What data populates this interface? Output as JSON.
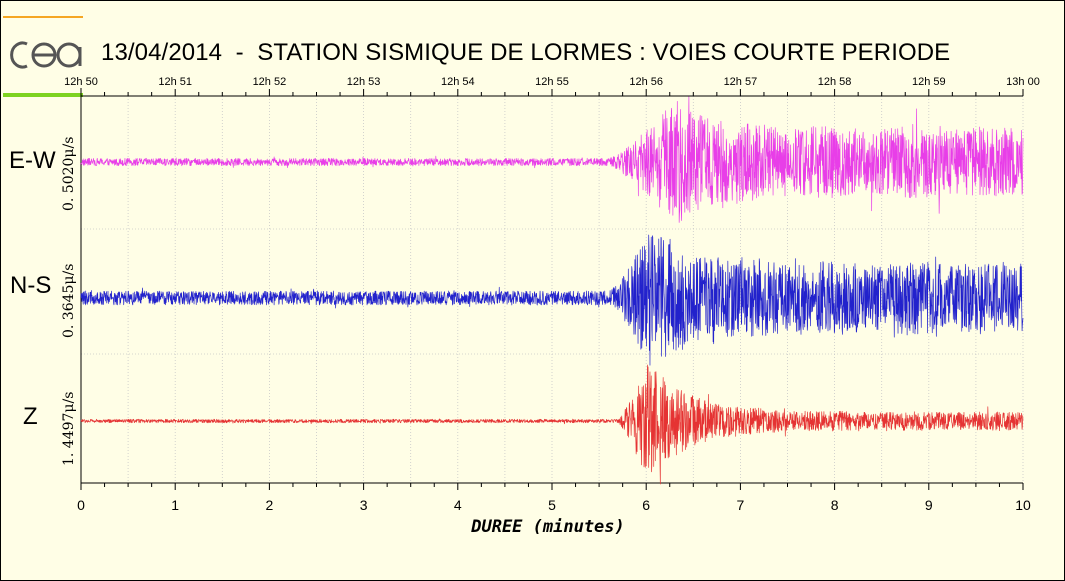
{
  "title": "13/04/2014  -  STATION SISMIQUE DE LORMES : VOIES COURTE PERIODE",
  "logo": {
    "text": "cea",
    "colors": {
      "top_bar": "#f5a623",
      "bottom_bar": "#7ed321",
      "letters": "#555555"
    }
  },
  "chart_data": {
    "type": "line",
    "title": "13/04/2014  -  STATION SISMIQUE DE LORMES : VOIES COURTE PERIODE",
    "xlabel": "DUREE (minutes)",
    "xlim": [
      0,
      10
    ],
    "x_ticks": [
      "0",
      "1",
      "2",
      "3",
      "4",
      "5",
      "6",
      "7",
      "8",
      "9",
      "10"
    ],
    "top_axis_ticks": [
      "12h 50",
      "12h 51",
      "12h 52",
      "12h 53",
      "12h 54",
      "12h 55",
      "12h 56",
      "12h 57",
      "12h 58",
      "12h 59",
      "13h 00"
    ],
    "grid": true,
    "series": [
      {
        "name": "E-W",
        "scale": "0. 5020μ/s",
        "color": "#e83ee8",
        "noise_level": 0.06,
        "onset_min": 5.6,
        "peak_min": 6.3,
        "peak_amplitude": 1.0,
        "coda_level": 0.55
      },
      {
        "name": "N-S",
        "scale": "0. 3645μ/s",
        "color": "#2222cc",
        "noise_level": 0.1,
        "onset_min": 5.6,
        "peak_min": 6.05,
        "peak_amplitude": 1.0,
        "coda_level": 0.5
      },
      {
        "name": "Z",
        "scale": "1. 4497μ/s",
        "color": "#e53333",
        "noise_level": 0.03,
        "onset_min": 5.7,
        "peak_min": 6.0,
        "peak_amplitude": 1.0,
        "coda_level": 0.15
      }
    ]
  }
}
